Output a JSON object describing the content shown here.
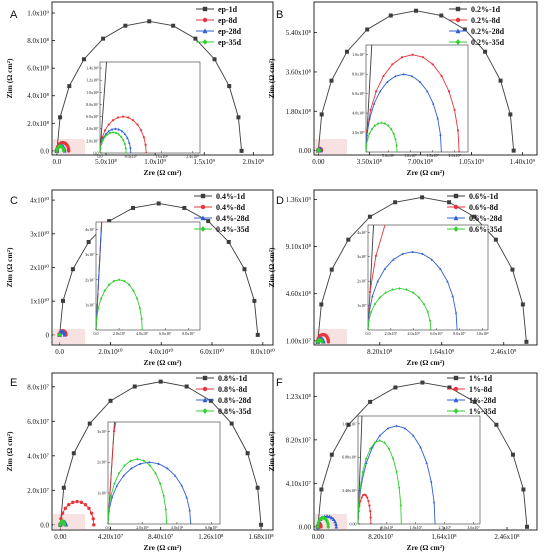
{
  "colors": {
    "1d": "#3d3d3d",
    "8d": "#e8343a",
    "28d": "#2f5fd6",
    "35d": "#2fcf2f"
  },
  "x_axis_label": "Zre (Ω cm²)",
  "y_axis_label": "Zim (Ω cm²)",
  "chart_data": [
    {
      "type": "scatter",
      "panel": "A",
      "legend": [
        "ep-1d",
        "ep-8d",
        "ep-28d",
        "ep-35d"
      ],
      "x_ticks": [
        "0.0",
        "5.0x10⁸",
        "1.0x10⁹",
        "1.5x10⁹",
        "2.0x10⁹"
      ],
      "y_ticks": [
        "0.0",
        "2.0x10⁸",
        "4.0x10⁸",
        "6.0x10⁸",
        "8.0x10⁸",
        "1.0x10⁹"
      ],
      "xlim": [
        -50000000.0,
        2200000000.0
      ],
      "ylim": [
        -30000000.0,
        1080000000.0
      ],
      "series": [
        {
          "name": "ep-1d",
          "R": 1880000000.0,
          "H": 940000000.0
        },
        {
          "name": "ep-8d",
          "R": 120000000.0,
          "H": 60000000.0
        },
        {
          "name": "ep-28d",
          "R": 80000000.0,
          "H": 40000000.0
        },
        {
          "name": "ep-35d",
          "R": 68000000.0,
          "H": 34000000.0
        }
      ],
      "inset": {
        "x_ticks": [
          "0.0",
          "8.0x10⁷",
          "1.6x10⁸",
          "2.4x10⁸"
        ],
        "y_ticks": [
          "0.0",
          "2.0x10⁷",
          "4.0x10⁷",
          "6.0x10⁷",
          "8.0x10⁷",
          "1.0x10⁸",
          "1.2x10⁸",
          "1.4x10⁸"
        ],
        "xlim": [
          0,
          260000000.0
        ],
        "ylim": [
          0,
          150000000.0
        ]
      }
    },
    {
      "type": "scatter",
      "panel": "B",
      "legend": [
        "0.2%-1d",
        "0.2%-8d",
        "0.2%-28d",
        "0.2%-35d"
      ],
      "x_ticks": [
        "0.00",
        "3.50x10⁸",
        "7.00x10⁸",
        "1.05x10⁹",
        "1.40x10⁹"
      ],
      "y_ticks": [
        "0.00",
        "1.80x10⁸",
        "3.60x10⁸",
        "5.40x10⁸"
      ],
      "xlim": [
        -30000000.0,
        1500000000.0
      ],
      "ylim": [
        -20000000.0,
        680000000.0
      ],
      "series": [
        {
          "name": "0.2%-1d",
          "R": 1340000000.0,
          "H": 640000000.0
        },
        {
          "name": "0.2%-8d",
          "R": 21000000.0,
          "H": 10000000.0
        },
        {
          "name": "0.2%-28d",
          "R": 17000000.0,
          "H": 8000000.0
        },
        {
          "name": "0.2%-35d",
          "R": 7000000.0,
          "H": 3000000.0
        }
      ],
      "inset": {
        "x_ticks": [
          "5.0x10⁶",
          "1.0x10⁷",
          "1.5x10⁷",
          "2.0x10⁷"
        ],
        "y_ticks": [
          "2.0x10⁶",
          "4.0x10⁶",
          "6.0x10⁶",
          "8.0x10⁶",
          "1.0x10⁷"
        ],
        "xlim": [
          0,
          23000000.0
        ],
        "ylim": [
          0,
          11000000.0
        ]
      }
    },
    {
      "type": "scatter",
      "panel": "C",
      "legend": [
        "0.4%-1d",
        "0.4%-8d",
        "0.4%-28d",
        "0.4%-35d"
      ],
      "x_ticks": [
        "0.0",
        "2.0x10¹⁰",
        "4.0x10¹⁰",
        "6.0x10¹⁰",
        "8.0x10¹⁰"
      ],
      "y_ticks": [
        "0",
        "1x10¹⁰",
        "2x10¹⁰",
        "3x10¹⁰",
        "4x10¹⁰"
      ],
      "xlim": [
        -3000000000.0,
        84000000000.0
      ],
      "ylim": [
        -3000000000.0,
        43000000000.0
      ],
      "series": [
        {
          "name": "0.4%-1d",
          "R": 78000000000.0,
          "H": 39000000000.0
        },
        {
          "name": "0.4%-8d",
          "R": 2500000000.0,
          "H": 1200000000.0
        },
        {
          "name": "0.4%-28d",
          "R": 2000000000.0,
          "H": 1000000000.0
        },
        {
          "name": "0.4%-35d",
          "R": 40000000.0,
          "H": 20000000.0
        }
      ],
      "inset": {
        "x_ticks": [
          "0.0",
          "2.0x10⁷",
          "4.0x10⁷",
          "6.0x10⁷",
          "8.0x10⁷"
        ],
        "y_ticks": [
          "1x10⁷",
          "2x10⁷",
          "3x10⁷",
          "4x10⁷"
        ],
        "xlim": [
          0,
          90000000.0
        ],
        "ylim": [
          0,
          43000000.0
        ]
      }
    },
    {
      "type": "scatter",
      "panel": "D",
      "legend": [
        "0.6%-1d",
        "0.6%-8d",
        "0.6%-28d",
        "0.6%-35d"
      ],
      "x_ticks": [
        "8.20x10⁸",
        "1.64x10⁹",
        "2.46x10⁹"
      ],
      "x_tick_values": [
        820000000.0,
        1640000000.0,
        2460000000.0
      ],
      "y_ticks": [
        "1.00x10⁷",
        "4.60x10⁸",
        "9.10x10⁸",
        "1.36x10⁹"
      ],
      "y_tick_values": [
        10000000.0,
        460000000.0,
        910000000.0,
        1360000000.0
      ],
      "xlim": [
        -50000000.0,
        2900000000.0
      ],
      "ylim": [
        -30000000.0,
        1450000000.0
      ],
      "series": [
        {
          "name": "0.6%-1d",
          "R": 2760000000.0,
          "H": 1380000000.0
        },
        {
          "name": "0.6%-8d",
          "R": 140000000.0,
          "H": 70000000.0
        },
        {
          "name": "0.6%-28d",
          "R": 78000000.0,
          "H": 32000000.0
        },
        {
          "name": "0.6%-35d",
          "R": 55000000.0,
          "H": 17000000.0
        }
      ],
      "inset": {
        "x_ticks": [
          "0.0",
          "2.0x10⁷",
          "4.0x10⁷",
          "6.0x10⁷",
          "8.0x10⁷",
          "1.0x10⁸"
        ],
        "y_ticks": [
          "1x10⁷",
          "2x10⁷",
          "3x10⁷",
          "4x10⁷"
        ],
        "xlim": [
          0,
          105000000.0
        ],
        "ylim": [
          0,
          43000000.0
        ]
      }
    },
    {
      "type": "scatter",
      "panel": "E",
      "legend": [
        "0.8%-1d",
        "0.8%-8d",
        "0.8%-28d",
        "0.8%-35d"
      ],
      "x_ticks": [
        "0.00",
        "4.20x10⁷",
        "8.40x10⁷",
        "1.26x10⁸",
        "1.68x10⁸"
      ],
      "y_ticks": [
        "0.0",
        "2.0x10⁷",
        "4.0x10⁷",
        "6.0x10⁷",
        "8.0x10⁷"
      ],
      "xlim": [
        -7000000.0,
        178000000.0
      ],
      "ylim": [
        -3000000.0,
        88000000.0
      ],
      "series": [
        {
          "name": "0.8%-1d",
          "R": 168000000.0,
          "H": 83000000.0
        },
        {
          "name": "0.8%-8d",
          "R": 28000000.0,
          "H": 13500000.0
        },
        {
          "name": "0.8%-28d",
          "R": 4800000.0,
          "H": 2000000.0
        },
        {
          "name": "0.8%-35d",
          "R": 3400000.0,
          "H": 2100000.0
        }
      ],
      "inset": {
        "x_ticks": [
          "0.0",
          "2.0x10⁶",
          "4.0x10⁶",
          "6.0x10⁶"
        ],
        "y_ticks": [
          "1x10⁶",
          "2x10⁶",
          "3x10⁶"
        ],
        "xlim": [
          0,
          6500000.0
        ],
        "ylim": [
          0,
          3300000.0
        ]
      }
    },
    {
      "type": "scatter",
      "panel": "F",
      "legend": [
        "1%-1d",
        "1%-8d",
        "1%-28d",
        "1%-35d"
      ],
      "x_ticks": [
        "0.00",
        "8.20x10⁷",
        "1.64x10⁸",
        "2.46x10⁸"
      ],
      "y_ticks": [
        "0.00",
        "4.10x10⁷",
        "8.20x10⁷",
        "1.23x10⁸"
      ],
      "xlim": [
        -5000000.0,
        285000000.0
      ],
      "ylim": [
        -3000000.0,
        145000000.0
      ],
      "series": [
        {
          "name": "1%-1d",
          "R": 272000000.0,
          "H": 136000000.0
        },
        {
          "name": "1%-8d",
          "R": 4000000.0,
          "H": 3000000.0
        },
        {
          "name": "1%-28d",
          "R": 24000000.0,
          "H": 10000000.0
        },
        {
          "name": "1%-35d",
          "R": 13500000.0,
          "H": 8500000.0
        }
      ],
      "inset": {
        "x_ticks": [
          "9.0x10⁶",
          "1.8x10⁷",
          "2.7x10⁷",
          "3.6x10⁷"
        ],
        "y_ticks": [
          "0.00",
          "3.40x10⁶",
          "6.80x10⁶",
          "1.02x10⁷"
        ],
        "xlim": [
          0,
          38000000.0
        ],
        "ylim": [
          0,
          11000000.0
        ]
      }
    }
  ]
}
